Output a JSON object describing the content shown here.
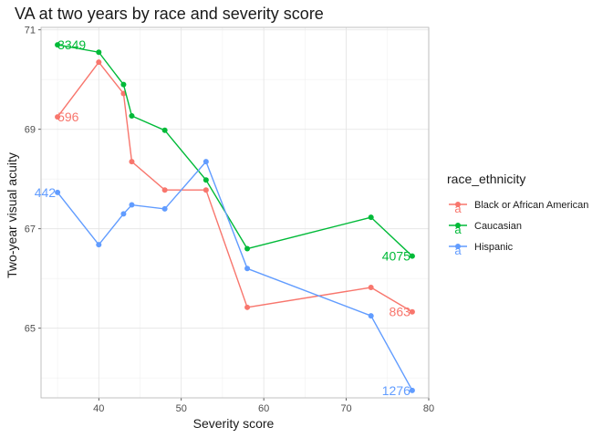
{
  "chart_data": {
    "type": "line",
    "title": "VA at two years by race and severity score",
    "xlabel": "Severity score",
    "ylabel": "Two-year visual acuity",
    "xlim": [
      33,
      80
    ],
    "ylim": [
      63.6,
      71.05
    ],
    "x_ticks": [
      40,
      50,
      60,
      70,
      80
    ],
    "y_ticks": [
      65,
      67,
      69,
      71
    ],
    "legend_title": "race_ethnicity",
    "legend_position": "right",
    "legend_key_glyph": "a",
    "series": [
      {
        "name": "Black or African American",
        "color": "#F8766D",
        "x": [
          35,
          40,
          43,
          44,
          48,
          53,
          58,
          73,
          78
        ],
        "y": [
          69.25,
          70.35,
          69.72,
          68.35,
          67.78,
          67.78,
          65.42,
          65.82,
          65.33
        ],
        "labels": [
          {
            "x": 35,
            "y": 69.25,
            "text": "596",
            "anchor": "start"
          },
          {
            "x": 78,
            "y": 65.33,
            "text": "863",
            "anchor": "end"
          }
        ]
      },
      {
        "name": "Caucasian",
        "color": "#00BA38",
        "x": [
          35,
          40,
          43,
          44,
          48,
          53,
          58,
          73,
          78
        ],
        "y": [
          70.7,
          70.55,
          69.9,
          69.27,
          68.98,
          67.98,
          66.6,
          67.23,
          66.45
        ],
        "labels": [
          {
            "x": 35,
            "y": 70.7,
            "text": "3349",
            "anchor": "start"
          },
          {
            "x": 78,
            "y": 66.45,
            "text": "4075",
            "anchor": "end"
          }
        ]
      },
      {
        "name": "Hispanic",
        "color": "#619CFF",
        "x": [
          35,
          40,
          43,
          44,
          48,
          53,
          58,
          73,
          78
        ],
        "y": [
          67.73,
          66.68,
          67.3,
          67.48,
          67.4,
          68.35,
          66.2,
          65.25,
          63.75
        ],
        "labels": [
          {
            "x": 35,
            "y": 67.73,
            "text": "442",
            "anchor": "end"
          },
          {
            "x": 78,
            "y": 63.75,
            "text": "1276",
            "anchor": "end"
          }
        ]
      }
    ]
  }
}
